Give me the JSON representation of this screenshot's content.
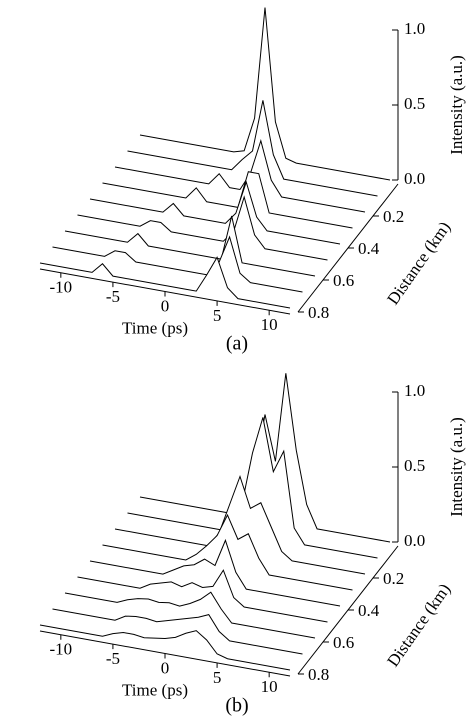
{
  "chart_data": [
    {
      "type": "waterfall",
      "caption": "(a)",
      "xlabel": "Time (ps)",
      "ylabel": "Distance (km)",
      "zlabel": "Intensity (a.u.)",
      "xlim": [
        -12,
        12
      ],
      "xticks": [
        -10,
        -5,
        0,
        5,
        10
      ],
      "ylim": [
        0,
        0.8
      ],
      "yticks": [
        0.2,
        0.4,
        0.6,
        0.8
      ],
      "zlim": [
        0,
        1
      ],
      "zticks": [
        {
          "value": 0,
          "label": "0.0"
        },
        0.5,
        {
          "value": 1,
          "label": "1.0"
        }
      ],
      "color": "#000000",
      "x": [
        -12,
        -10,
        -8,
        -7,
        -6,
        -5,
        -4,
        -3,
        -2,
        -1,
        0,
        1,
        2,
        3,
        4,
        5,
        6,
        7,
        8,
        10,
        12
      ],
      "y": [
        0,
        0.1,
        0.2,
        0.3,
        0.4,
        0.5,
        0.6,
        0.7,
        0.8
      ],
      "values": [
        [
          0,
          0,
          0,
          0,
          0,
          0,
          0,
          0,
          0.02,
          0.25,
          1.0,
          0.25,
          0.02,
          0,
          0,
          0,
          0,
          0,
          0,
          0,
          0
        ],
        [
          0,
          0,
          0,
          0,
          0,
          0,
          0,
          0,
          0,
          0.08,
          0.15,
          0.5,
          0.15,
          0,
          0,
          0,
          0,
          0,
          0,
          0,
          0
        ],
        [
          0,
          0,
          0,
          0,
          0,
          0,
          0,
          0,
          0.08,
          0,
          0,
          0.12,
          0.35,
          0.1,
          0,
          0,
          0,
          0,
          0,
          0,
          0
        ],
        [
          0,
          0,
          0,
          0,
          0,
          0,
          0,
          0.08,
          0,
          0,
          0,
          0,
          0.25,
          0.25,
          0,
          0,
          0,
          0,
          0,
          0,
          0
        ],
        [
          0,
          0,
          0,
          0,
          0,
          0,
          0.07,
          0,
          0,
          0,
          0,
          0,
          0.08,
          0.3,
          0.08,
          0,
          0,
          0,
          0,
          0,
          0
        ],
        [
          0,
          0,
          0,
          0,
          0,
          0.05,
          0.05,
          0,
          0,
          0,
          0,
          0,
          0,
          0.08,
          0.32,
          0.08,
          0,
          0,
          0,
          0,
          0
        ],
        [
          0,
          0,
          0,
          0,
          0,
          0.07,
          0,
          0,
          0,
          0,
          0,
          0,
          0,
          0,
          0.3,
          0,
          0,
          0,
          0,
          0,
          0
        ],
        [
          0,
          0,
          0,
          0,
          0.05,
          0.05,
          0,
          0,
          0,
          0,
          0,
          0,
          0,
          0,
          0.1,
          0.28,
          0.05,
          0,
          0,
          0,
          0
        ],
        [
          0,
          0,
          0,
          0,
          0.07,
          0,
          0,
          0,
          0,
          0,
          0,
          0,
          0,
          0,
          0.12,
          0.25,
          0.06,
          0,
          0,
          0,
          0
        ]
      ]
    },
    {
      "type": "waterfall",
      "caption": "(b)",
      "xlabel": "Time (ps)",
      "ylabel": "Distance (km)",
      "zlabel": "Intensity (a.u.)",
      "xlim": [
        -12,
        12
      ],
      "xticks": [
        -10,
        -5,
        0,
        5,
        10
      ],
      "ylim": [
        0,
        0.8
      ],
      "yticks": [
        0.2,
        0.4,
        0.6,
        0.8
      ],
      "zlim": [
        0,
        1
      ],
      "zticks": [
        {
          "value": 0,
          "label": "0.0"
        },
        0.5,
        {
          "value": 1,
          "label": "1.0"
        }
      ],
      "color": "#000000",
      "x": [
        -12,
        -10,
        -8,
        -7,
        -6,
        -5,
        -4,
        -3,
        -2,
        -1,
        0,
        1,
        2,
        3,
        4,
        5,
        6,
        7,
        8,
        10,
        12
      ],
      "y": [
        0,
        0.1,
        0.2,
        0.3,
        0.4,
        0.5,
        0.6,
        0.7,
        0.8
      ],
      "values": [
        [
          0,
          0,
          0,
          0,
          0,
          0,
          0,
          0,
          0.05,
          0.3,
          0.7,
          0.4,
          1.0,
          0.5,
          0.15,
          0,
          0,
          0,
          0,
          0,
          0
        ],
        [
          0,
          0,
          0,
          0,
          0,
          0,
          0,
          0,
          0,
          0.2,
          0.55,
          0.8,
          0.45,
          0.6,
          0.1,
          0,
          0,
          0,
          0,
          0,
          0
        ],
        [
          0,
          0,
          0,
          0,
          0,
          0,
          0,
          0,
          0.1,
          0.3,
          0.5,
          0.3,
          0.35,
          0.2,
          0.05,
          0,
          0,
          0,
          0,
          0,
          0
        ],
        [
          0,
          0,
          0,
          0,
          0,
          0,
          0,
          0.05,
          0.12,
          0.2,
          0.35,
          0.2,
          0.25,
          0.1,
          0,
          0,
          0,
          0,
          0,
          0,
          0
        ],
        [
          0,
          0,
          0,
          0,
          0,
          0,
          0.04,
          0.08,
          0.1,
          0.15,
          0.12,
          0.3,
          0.1,
          0,
          0,
          0,
          0,
          0,
          0,
          0,
          0
        ],
        [
          0,
          0,
          0,
          0,
          0,
          0.04,
          0.06,
          0.08,
          0.06,
          0.1,
          0.08,
          0.1,
          0.22,
          0.05,
          0,
          0,
          0,
          0,
          0,
          0,
          0
        ],
        [
          0,
          0,
          0,
          0,
          0.03,
          0.05,
          0.06,
          0.05,
          0.06,
          0.05,
          0.08,
          0.12,
          0.18,
          0.08,
          0,
          0,
          0,
          0,
          0,
          0,
          0
        ],
        [
          0,
          0,
          0,
          0,
          0,
          0.04,
          0.05,
          0.05,
          0.04,
          0.06,
          0.08,
          0.1,
          0.12,
          0.15,
          0.05,
          0,
          0,
          0,
          0,
          0,
          0
        ],
        [
          0,
          0,
          0,
          0,
          0,
          0.03,
          0.05,
          0.05,
          0.04,
          0.05,
          0.06,
          0.08,
          0.12,
          0.15,
          0.1,
          0.02,
          0,
          0,
          0,
          0,
          0
        ]
      ]
    }
  ]
}
